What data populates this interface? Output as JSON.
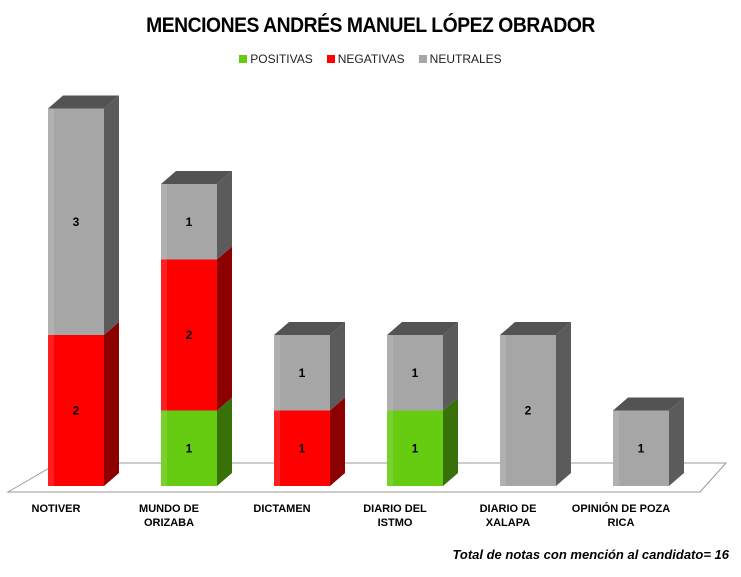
{
  "chart_data": {
    "type": "bar",
    "stacked": true,
    "title": "MENCIONES ANDRÉS MANUEL LÓPEZ OBRADOR",
    "categories": [
      "NOTIVER",
      "MUNDO DE ORIZABA",
      "DICTAMEN",
      "DIARIO DEL ISTMO",
      "DIARIO DE XALAPA",
      "OPINIÓN DE POZA RICA"
    ],
    "category_lines": [
      [
        "NOTIVER"
      ],
      [
        "MUNDO DE",
        "ORIZABA"
      ],
      [
        "DICTAMEN"
      ],
      [
        "DIARIO DEL",
        "ISTMO"
      ],
      [
        "DIARIO DE",
        "XALAPA"
      ],
      [
        "OPINIÓN DE POZA",
        "RICA"
      ]
    ],
    "series": [
      {
        "name": "POSITIVAS",
        "color": "#66cc11",
        "values": [
          0,
          1,
          0,
          1,
          0,
          0
        ]
      },
      {
        "name": "NEGATIVAS",
        "color": "#ff0000",
        "values": [
          2,
          2,
          1,
          0,
          0,
          0
        ]
      },
      {
        "name": "NEUTRALES",
        "color": "#a6a6a6",
        "values": [
          3,
          1,
          1,
          1,
          2,
          1
        ]
      }
    ],
    "legend_position": "top",
    "grid": false,
    "ylim": [
      0,
      5
    ],
    "footnote": "Total de notas con mención al candidato= 16"
  }
}
